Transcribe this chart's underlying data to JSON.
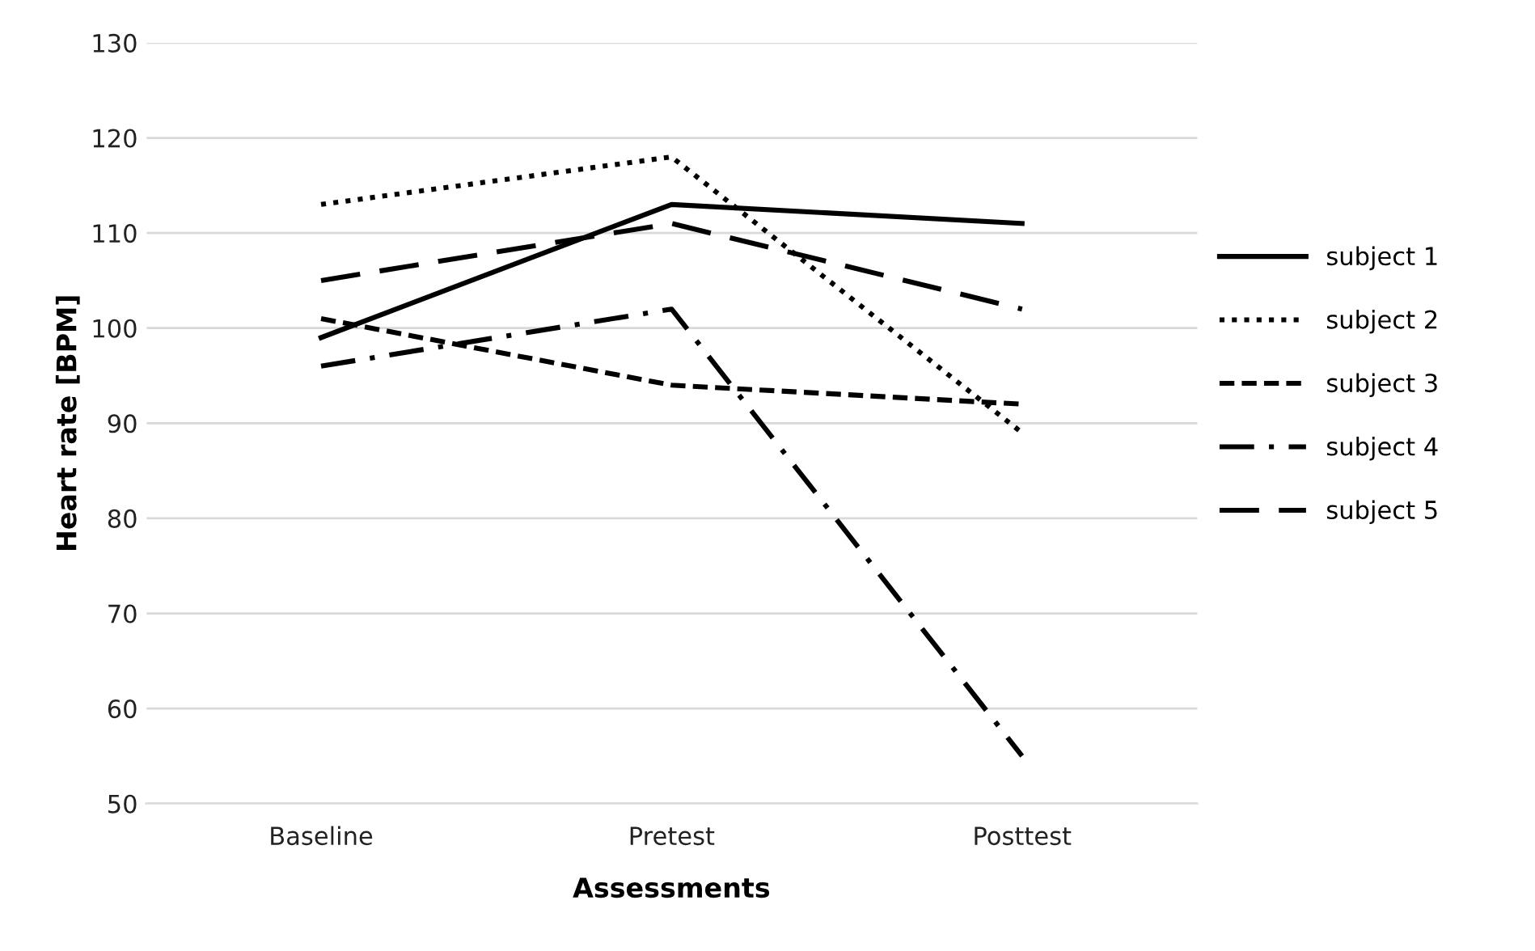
{
  "chart_data": {
    "type": "line",
    "xlabel": "Assessments",
    "ylabel": "Heart rate [BPM]",
    "categories": [
      "Baseline",
      "Pretest",
      "Posttest"
    ],
    "series": [
      {
        "name": "subject 1",
        "color": "#000000",
        "line_style": "solid",
        "values": [
          99,
          113,
          111
        ]
      },
      {
        "name": "subject 2",
        "color": "#000000",
        "line_style": "dotted",
        "values": [
          113,
          118,
          89
        ]
      },
      {
        "name": "subject 3",
        "color": "#000000",
        "line_style": "dashed",
        "values": [
          101,
          94,
          92
        ]
      },
      {
        "name": "subject 4",
        "color": "#000000",
        "line_style": "dashdot",
        "values": [
          96,
          102,
          55
        ]
      },
      {
        "name": "subject 5",
        "color": "#000000",
        "line_style": "longdash",
        "values": [
          105,
          111,
          102
        ]
      }
    ],
    "ylim": [
      50,
      130
    ],
    "yticks": [
      50,
      60,
      70,
      80,
      90,
      100,
      110,
      120,
      130
    ],
    "grid": "y",
    "legend": "right",
    "marker": "none"
  }
}
